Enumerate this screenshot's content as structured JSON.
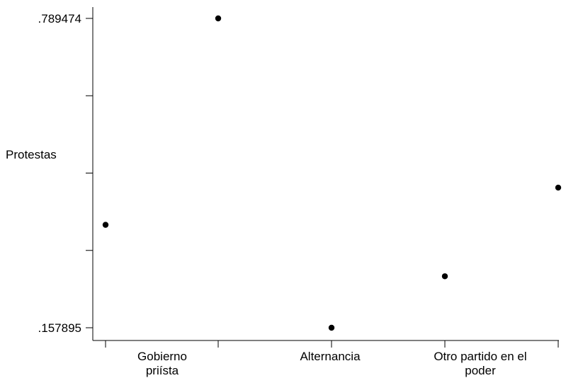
{
  "chart_data": {
    "type": "scatter",
    "title": "",
    "xlabel": "",
    "ylabel": "Protestas",
    "ylim": [
      0.157895,
      0.789474
    ],
    "y_tick_values": [
      0.157895,
      0.31579,
      0.473684,
      0.631579,
      0.789474
    ],
    "y_tick_labels": [
      ".157895",
      "",
      "",
      "",
      ".789474"
    ],
    "x_tick_values": [
      1,
      2,
      3,
      4,
      5,
      6,
      7,
      8,
      9
    ],
    "x_category_labels": [
      {
        "x": 2.5,
        "lines": [
          "Gobierno",
          "priísta"
        ]
      },
      {
        "x": 5,
        "lines": [
          "Alternancia"
        ]
      },
      {
        "x": 7.5,
        "lines": [
          "Otro partido en el",
          "poder"
        ]
      }
    ],
    "points": [
      {
        "x": 1,
        "y": 0.368
      },
      {
        "x": 2,
        "y": 0.789474
      },
      {
        "x": 3,
        "y": 0.157895
      },
      {
        "x": 4,
        "y": 0.263
      },
      {
        "x": 5,
        "y": 0.444
      }
    ],
    "grid": false,
    "legend": "none",
    "marker_color": "#000000"
  }
}
